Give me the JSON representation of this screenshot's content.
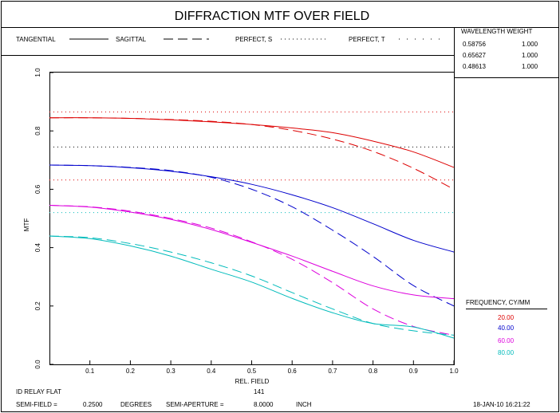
{
  "title": "DIFFRACTION MTF OVER FIELD",
  "legend": {
    "tangential": "TANGENTIAL",
    "sagittal": "SAGITTAL",
    "perfect_s": "PERFECT, S",
    "perfect_t": "PERFECT, T"
  },
  "wavelength_table": {
    "header": "WAVELENGTH  WEIGHT",
    "rows": [
      {
        "wavelength": "0.58756",
        "weight": "1.000"
      },
      {
        "wavelength": "0.65627",
        "weight": "1.000"
      },
      {
        "wavelength": "0.48613",
        "weight": "1.000"
      }
    ]
  },
  "frequency_legend": {
    "header": "FREQUENCY,    CY/MM",
    "items": [
      {
        "label": "20.00",
        "color": "#dd0000"
      },
      {
        "label": "40.00",
        "color": "#0000cc"
      },
      {
        "label": "60.00",
        "color": "#dd00dd"
      },
      {
        "label": "80.00",
        "color": "#00bbbb"
      }
    ]
  },
  "footer": {
    "system": "ID RELAY FLAT",
    "id": "141",
    "semi_field_label": "SEMI-FIELD =",
    "semi_field_value": "0.2500",
    "semi_field_unit": "DEGREES",
    "semi_aperture_label": "SEMI-APERTURE =",
    "semi_aperture_value": "8.0000",
    "semi_aperture_unit": "INCH",
    "date": "18-JAN-10  16:21:22"
  },
  "chart_data": {
    "type": "line",
    "xlabel": "REL. FIELD",
    "ylabel": "MTF",
    "xlim": [
      0,
      1
    ],
    "ylim": [
      0,
      1
    ],
    "x_ticks": [
      "0.1",
      "0.2",
      "0.3",
      "0.4",
      "0.5",
      "0.6",
      "0.7",
      "0.8",
      "0.9",
      "1.0"
    ],
    "y_ticks": [
      "0.0",
      "0.2",
      "0.4",
      "0.6",
      "0.8",
      "1.0"
    ],
    "x": [
      0,
      0.1,
      0.2,
      0.3,
      0.4,
      0.5,
      0.6,
      0.7,
      0.8,
      0.9,
      1.0
    ],
    "series": [
      {
        "frequency": "20.00",
        "kind": "tangential",
        "color": "#dd0000",
        "values": [
          0.845,
          0.845,
          0.843,
          0.838,
          0.831,
          0.822,
          0.81,
          0.794,
          0.765,
          0.728,
          0.675
        ]
      },
      {
        "frequency": "20.00",
        "kind": "sagittal",
        "color": "#dd0000",
        "values": [
          0.845,
          0.845,
          0.843,
          0.839,
          0.833,
          0.822,
          0.802,
          0.772,
          0.73,
          0.672,
          0.6
        ]
      },
      {
        "frequency": "40.00",
        "kind": "tangential",
        "color": "#0000cc",
        "values": [
          0.683,
          0.681,
          0.674,
          0.662,
          0.643,
          0.617,
          0.581,
          0.537,
          0.482,
          0.425,
          0.385
        ]
      },
      {
        "frequency": "40.00",
        "kind": "sagittal",
        "color": "#0000cc",
        "values": [
          0.683,
          0.681,
          0.675,
          0.664,
          0.641,
          0.6,
          0.54,
          0.46,
          0.37,
          0.27,
          0.2
        ]
      },
      {
        "frequency": "60.00",
        "kind": "tangential",
        "color": "#dd00dd",
        "values": [
          0.545,
          0.539,
          0.522,
          0.497,
          0.462,
          0.418,
          0.371,
          0.319,
          0.269,
          0.238,
          0.225
        ]
      },
      {
        "frequency": "60.00",
        "kind": "sagittal",
        "color": "#dd00dd",
        "values": [
          0.545,
          0.54,
          0.525,
          0.5,
          0.467,
          0.42,
          0.36,
          0.28,
          0.19,
          0.13,
          0.1
        ]
      },
      {
        "frequency": "80.00",
        "kind": "tangential",
        "color": "#00bbbb",
        "values": [
          0.44,
          0.431,
          0.406,
          0.371,
          0.326,
          0.282,
          0.226,
          0.177,
          0.14,
          0.128,
          0.09
        ]
      },
      {
        "frequency": "80.00",
        "kind": "sagittal",
        "color": "#00bbbb",
        "values": [
          0.44,
          0.434,
          0.414,
          0.385,
          0.348,
          0.303,
          0.246,
          0.19,
          0.14,
          0.115,
          0.1
        ]
      }
    ],
    "perfect": [
      {
        "frequency": "20.00",
        "color": "#dd0000",
        "value": 0.865
      },
      {
        "frequency": "40.00",
        "color": "#000000",
        "value": 0.745
      },
      {
        "frequency": "60.00",
        "color": "#dd0000",
        "value": 0.632
      },
      {
        "frequency": "80.00",
        "color": "#00bbbb",
        "value": 0.52
      }
    ]
  }
}
